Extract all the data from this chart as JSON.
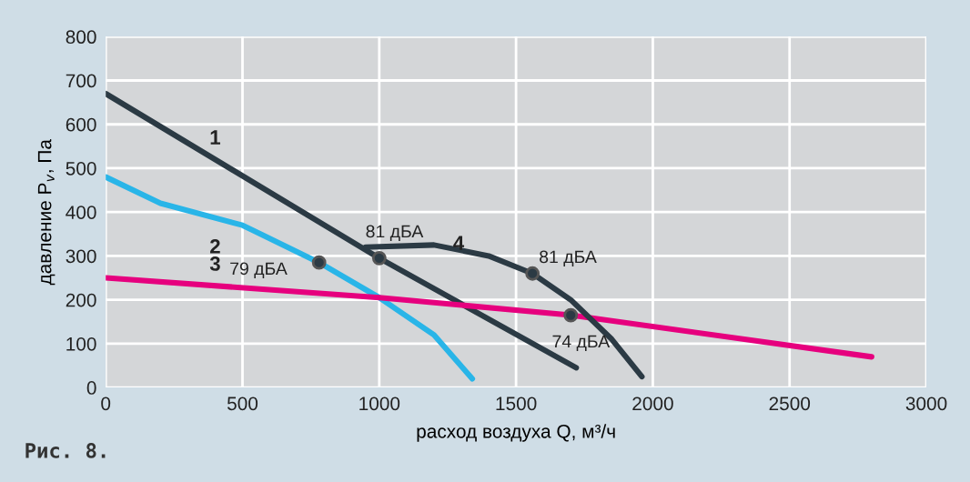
{
  "chart_data": {
    "type": "line",
    "xlabel": "расход воздуха Q, м³/ч",
    "ylabel": "давление P$_{v}$, Па",
    "xlim": [
      0,
      3000
    ],
    "xticks": [
      0,
      500,
      1000,
      1500,
      2000,
      2500,
      3000
    ],
    "ylim": [
      0,
      800
    ],
    "yticks": [
      0,
      100,
      200,
      300,
      400,
      500,
      600,
      700,
      800
    ],
    "grid": true,
    "legend": false,
    "marker": "none",
    "line_style": "solid",
    "series": [
      {
        "name": "1",
        "color": "#2b3a44",
        "x": [
          0,
          1000,
          1720
        ],
        "values": [
          670,
          295,
          45
        ]
      },
      {
        "name": "2",
        "color": "#29b5e8",
        "x": [
          0,
          200,
          500,
          780,
          1000,
          1200,
          1340
        ],
        "values": [
          480,
          420,
          370,
          285,
          205,
          120,
          20
        ]
      },
      {
        "name": "3",
        "color": "#e6007e",
        "x": [
          0,
          1000,
          1700,
          2800
        ],
        "values": [
          250,
          205,
          165,
          70
        ]
      },
      {
        "name": "4",
        "color": "#2b3a44",
        "x": [
          950,
          1200,
          1400,
          1560,
          1700,
          1850,
          1960
        ],
        "values": [
          320,
          325,
          300,
          260,
          200,
          110,
          25
        ]
      },
      {
        "type": "scatter",
        "marker": "circle",
        "color": "#2b3a44",
        "x": [
          780,
          1000,
          1560,
          1700
        ],
        "values": [
          285,
          295,
          260,
          165
        ]
      }
    ],
    "annotations": [
      {
        "text": "79 дБА",
        "x": 780,
        "y": 285
      },
      {
        "text": "81 дБА",
        "x": 1000,
        "y": 295
      },
      {
        "text": "81 дБА",
        "x": 1560,
        "y": 260
      },
      {
        "text": "74 дБА",
        "x": 1700,
        "y": 165
      },
      "Рис. 8."
    ]
  }
}
